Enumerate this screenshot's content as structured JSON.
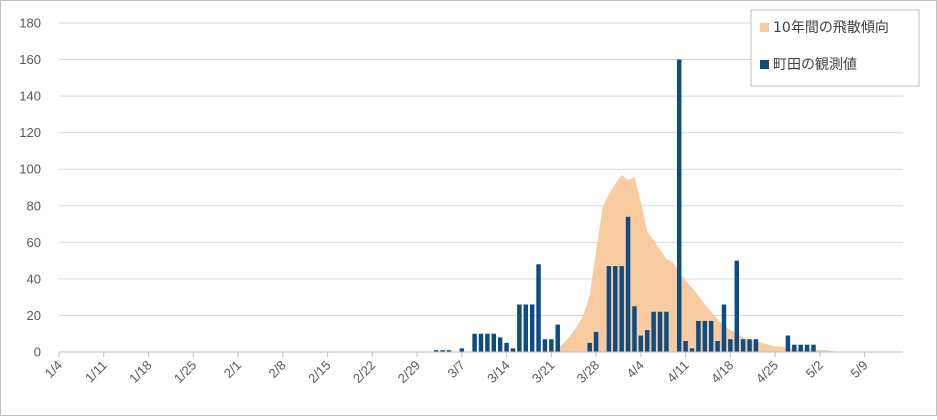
{
  "chart_data": {
    "type": "bar",
    "y_axis": {
      "ylim": [
        0,
        180
      ],
      "ticks": [
        0,
        20,
        40,
        60,
        80,
        100,
        120,
        140,
        160,
        180
      ]
    },
    "x_axis": {
      "start": "1/4",
      "end": "5/15",
      "tick_labels": [
        "1/4",
        "1/11",
        "1/18",
        "1/25",
        "2/1",
        "2/8",
        "2/15",
        "2/22",
        "2/29",
        "3/7",
        "3/14",
        "3/21",
        "3/28",
        "4/4",
        "4/11",
        "4/18",
        "4/25",
        "5/2",
        "5/9"
      ]
    },
    "grid": true,
    "legend": {
      "position": "top-right"
    },
    "series": [
      {
        "name": "10年間の飛散傾向",
        "kind": "area",
        "color": "#f8cba0",
        "points": [
          [
            "3/21",
            0
          ],
          [
            "3/22",
            2
          ],
          [
            "3/23",
            5
          ],
          [
            "3/24",
            9
          ],
          [
            "3/25",
            14
          ],
          [
            "3/26",
            20
          ],
          [
            "3/27",
            31
          ],
          [
            "3/28",
            55
          ],
          [
            "3/29",
            79
          ],
          [
            "3/30",
            86
          ],
          [
            "3/31",
            92
          ],
          [
            "4/1",
            97
          ],
          [
            "4/2",
            94
          ],
          [
            "4/3",
            96
          ],
          [
            "4/4",
            82
          ],
          [
            "4/5",
            66
          ],
          [
            "4/6",
            61
          ],
          [
            "4/7",
            56
          ],
          [
            "4/8",
            51
          ],
          [
            "4/9",
            49
          ],
          [
            "4/10",
            44
          ],
          [
            "4/11",
            39
          ],
          [
            "4/12",
            35
          ],
          [
            "4/13",
            31
          ],
          [
            "4/14",
            26
          ],
          [
            "4/15",
            22
          ],
          [
            "4/16",
            18
          ],
          [
            "4/17",
            14
          ],
          [
            "4/18",
            12
          ],
          [
            "4/19",
            10
          ],
          [
            "4/20",
            8
          ],
          [
            "4/21",
            7
          ],
          [
            "4/22",
            6
          ],
          [
            "4/23",
            5
          ],
          [
            "4/24",
            4
          ],
          [
            "4/25",
            3
          ],
          [
            "4/26",
            3
          ],
          [
            "4/27",
            2
          ],
          [
            "4/28",
            2
          ],
          [
            "4/29",
            2
          ],
          [
            "4/30",
            2
          ],
          [
            "5/1",
            1.5
          ],
          [
            "5/2",
            1
          ],
          [
            "5/3",
            1
          ],
          [
            "5/4",
            0.5
          ],
          [
            "5/5",
            0
          ]
        ]
      },
      {
        "name": "町田の観測値",
        "kind": "bar",
        "color": "#0f4c81",
        "points": [
          [
            "3/3",
            1
          ],
          [
            "3/4",
            1
          ],
          [
            "3/5",
            1
          ],
          [
            "3/7",
            2
          ],
          [
            "3/9",
            10
          ],
          [
            "3/10",
            10
          ],
          [
            "3/11",
            10
          ],
          [
            "3/12",
            10
          ],
          [
            "3/13",
            8
          ],
          [
            "3/14",
            5
          ],
          [
            "3/15",
            2
          ],
          [
            "3/16",
            26
          ],
          [
            "3/17",
            26
          ],
          [
            "3/18",
            26
          ],
          [
            "3/19",
            48
          ],
          [
            "3/20",
            7
          ],
          [
            "3/21",
            7
          ],
          [
            "3/22",
            15
          ],
          [
            "3/27",
            5
          ],
          [
            "3/28",
            11
          ],
          [
            "3/30",
            47
          ],
          [
            "3/31",
            47
          ],
          [
            "4/1",
            47
          ],
          [
            "4/2",
            74
          ],
          [
            "4/3",
            25
          ],
          [
            "4/4",
            9
          ],
          [
            "4/5",
            12
          ],
          [
            "4/6",
            22
          ],
          [
            "4/7",
            22
          ],
          [
            "4/8",
            22
          ],
          [
            "4/10",
            160
          ],
          [
            "4/11",
            6
          ],
          [
            "4/12",
            2
          ],
          [
            "4/13",
            17
          ],
          [
            "4/14",
            17
          ],
          [
            "4/15",
            17
          ],
          [
            "4/16",
            6
          ],
          [
            "4/17",
            26
          ],
          [
            "4/18",
            7
          ],
          [
            "4/19",
            50
          ],
          [
            "4/20",
            7
          ],
          [
            "4/21",
            7
          ],
          [
            "4/22",
            7
          ],
          [
            "4/27",
            9
          ],
          [
            "4/28",
            4
          ],
          [
            "4/29",
            4
          ],
          [
            "4/30",
            4
          ],
          [
            "5/1",
            4
          ]
        ]
      }
    ]
  }
}
